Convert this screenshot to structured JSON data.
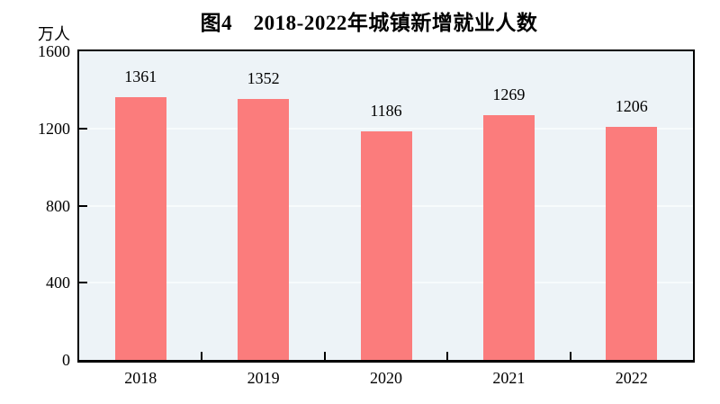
{
  "chart_data": {
    "type": "bar",
    "title": "图4　2018-2022年城镇新增就业人数",
    "unit_label": "万人",
    "categories": [
      "2018",
      "2019",
      "2020",
      "2021",
      "2022"
    ],
    "values": [
      1361,
      1352,
      1186,
      1269,
      1206
    ],
    "xlabel": "",
    "ylabel": "万人",
    "ylim": [
      0,
      1600
    ],
    "yticks": [
      0,
      400,
      800,
      1200,
      1600
    ],
    "grid": "horizontal",
    "legend": "none",
    "data_labels_shown": true,
    "colors": {
      "bar": "#FB7C7C",
      "plot_background": "#EDF3F7",
      "gridline": "#F7FBFC",
      "axis": "#000000",
      "text": "#000000",
      "page_background": "#FFFFFF"
    }
  }
}
